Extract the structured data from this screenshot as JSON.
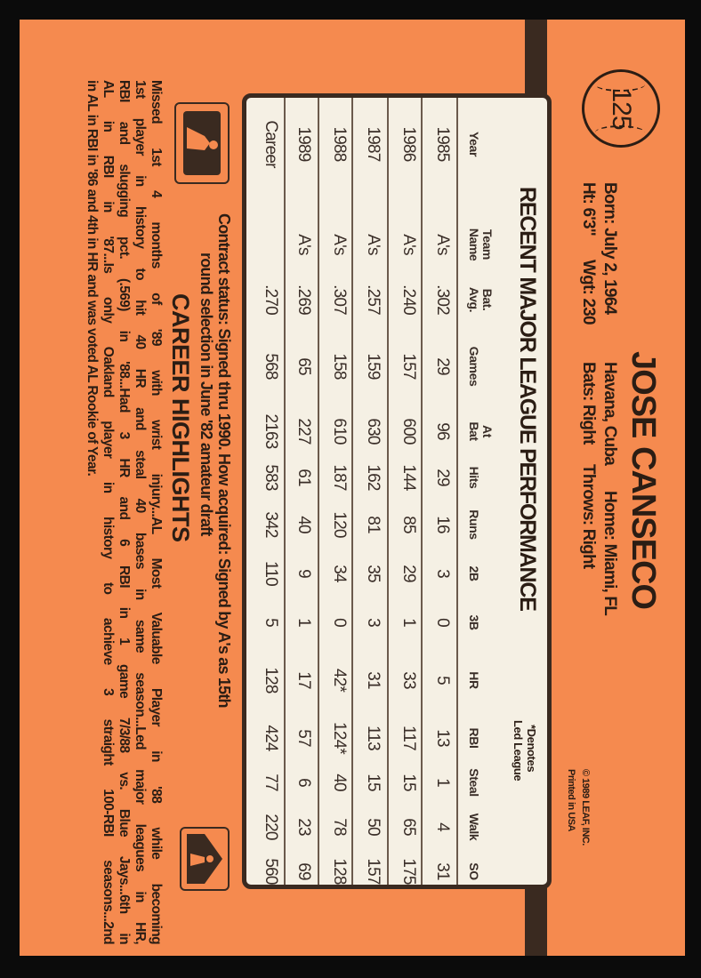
{
  "card_number": "125",
  "player": {
    "name": "JOSE CANSECO",
    "born": "Born: July 2, 1964",
    "birthplace": "Havana, Cuba",
    "home": "Home: Miami, FL",
    "height": "Ht: 6'3\"",
    "weight": "Wgt: 230",
    "bats": "Bats: Right",
    "throws": "Throws: Right"
  },
  "copyright": "© 1989 LEAF, INC.",
  "printed": "Printed in USA",
  "stats": {
    "title": "RECENT MAJOR LEAGUE PERFORMANCE",
    "note_1": "*Denotes",
    "note_2": "Led League",
    "headers": [
      "Year",
      "Team\nName",
      "Bat.\nAvg.",
      "Games",
      "At\nBat",
      "Hits",
      "Runs",
      "2B",
      "3B",
      "HR",
      "RBI",
      "Steal",
      "Walk",
      "SO"
    ],
    "rows": [
      [
        "1985",
        "A's",
        ".302",
        "29",
        "96",
        "29",
        "16",
        "3",
        "0",
        "5",
        "13",
        "1",
        "4",
        "31"
      ],
      [
        "1986",
        "A's",
        ".240",
        "157",
        "600",
        "144",
        "85",
        "29",
        "1",
        "33",
        "117",
        "15",
        "65",
        "175"
      ],
      [
        "1987",
        "A's",
        ".257",
        "159",
        "630",
        "162",
        "81",
        "35",
        "3",
        "31",
        "113",
        "15",
        "50",
        "157"
      ],
      [
        "1988",
        "A's",
        ".307",
        "158",
        "610",
        "187",
        "120",
        "34",
        "0",
        "42*",
        "124*",
        "40",
        "78",
        "128"
      ],
      [
        "1989",
        "A's",
        ".269",
        "65",
        "227",
        "61",
        "40",
        "9",
        "1",
        "17",
        "57",
        "6",
        "23",
        "69"
      ],
      [
        "Career",
        "",
        ".270",
        "568",
        "2163",
        "583",
        "342",
        "110",
        "5",
        "128",
        "424",
        "77",
        "220",
        "560"
      ]
    ]
  },
  "contract": {
    "line_1": "Contract status: Signed thru 1990. How acquired: Signed by A's as 15th",
    "line_2": "round selection in June '82 amateur draft"
  },
  "highlights": {
    "title": "CAREER HIGHLIGHTS",
    "lines": [
      "Missed 1st 4 months of '89 with wrist injury...AL Most Valuable Player in '88 while becoming",
      "1st player in history to hit 40 HR and steal 40 bases in same season...Led major leagues in HR,",
      "RBI and slugging pct. (.569) in '88...Had 3 HR and 6 RBI in 1 game 7/3/88 vs. Blue Jays...6th in",
      "AL in RBI in '87...Is only Oakland player in history to achieve 3 straight 100-RBI seasons...2nd",
      "in AL in RBI in '86 and 4th in HR and was voted AL Rookie of Year."
    ]
  },
  "logos": {
    "left": "major-league-baseball-logo",
    "right": "mlb-players-logo"
  },
  "colors": {
    "card": "#f58a4f",
    "ink": "#2b1d14",
    "table": "#f5f0e4"
  }
}
